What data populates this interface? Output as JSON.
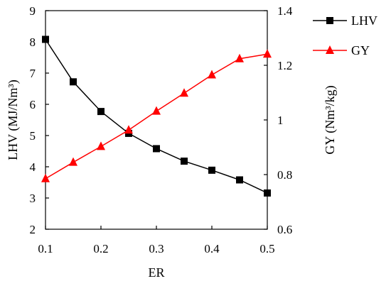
{
  "chart_data": {
    "type": "line",
    "x": [
      0.1,
      0.15,
      0.2,
      0.25,
      0.3,
      0.35,
      0.4,
      0.45,
      0.5
    ],
    "xlabel": "ER",
    "xlim": [
      0.1,
      0.5
    ],
    "xticks": [
      "0.1",
      "0.2",
      "0.3",
      "0.4",
      "0.5"
    ],
    "ylabel_left": "LHV (MJ/Nm³)",
    "ylim_left": [
      2,
      9
    ],
    "yticks_left": [
      "2",
      "3",
      "4",
      "5",
      "6",
      "7",
      "8",
      "9"
    ],
    "ylabel_right": "GY (Nm³/kg)",
    "ylim_right": [
      0.6,
      1.4
    ],
    "yticks_right": [
      "0.6",
      "0.8",
      "1",
      "1.2",
      "1.4"
    ],
    "grid": false,
    "legend_position": "top-right outside",
    "series": [
      {
        "name": "LHV",
        "axis": "left",
        "marker": "square",
        "color": "#000000",
        "values": [
          8.08,
          6.72,
          5.77,
          5.07,
          4.58,
          4.18,
          3.89,
          3.58,
          3.16
        ]
      },
      {
        "name": "GY",
        "axis": "right",
        "marker": "triangle",
        "color": "#ff0000",
        "values": [
          0.785,
          0.845,
          0.903,
          0.963,
          1.032,
          1.098,
          1.165,
          1.224,
          1.241
        ]
      }
    ]
  }
}
